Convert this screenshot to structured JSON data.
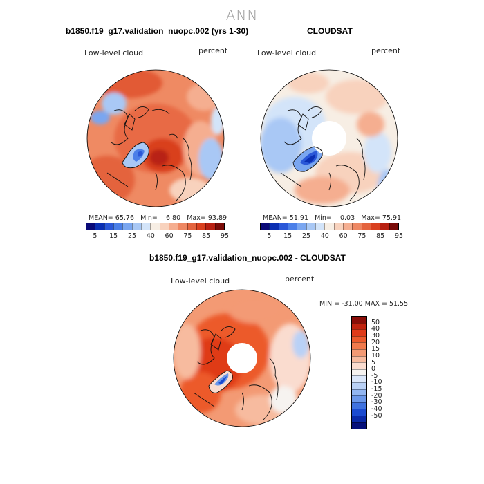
{
  "page": {
    "title": "ANN"
  },
  "panel_model": {
    "title": "b1850.f19_g17.validation_nuopc.002 (yrs 1-30)",
    "variable": "Low-level cloud",
    "units": "percent",
    "stats": {
      "mean_label": "MEAN=",
      "mean": "65.76",
      "min_label": "Min=",
      "min": "6.80",
      "max_label": "Max=",
      "max": "93.89"
    }
  },
  "panel_obs": {
    "title": "CLOUDSAT",
    "variable": "Low-level cloud",
    "units": "percent",
    "stats": {
      "mean_label": "MEAN=",
      "mean": "51.91",
      "min_label": "Min=",
      "min": "0.03",
      "max_label": "Max=",
      "max": "75.91"
    }
  },
  "panel_diff": {
    "title": "b1850.f19_g17.validation_nuopc.002 - CLOUDSAT",
    "variable": "Low-level cloud",
    "units": "percent",
    "stats_text": "MIN = -31.00 MAX =  51.55"
  },
  "colorbar_abs": {
    "labels": [
      "5",
      "15",
      "25",
      "40",
      "60",
      "75",
      "85",
      "95"
    ],
    "colors": [
      "#0a0a78",
      "#0b2fb3",
      "#2a57d8",
      "#4b7fe8",
      "#7aa6f0",
      "#a9c8f5",
      "#d3e4f9",
      "#f7eee4",
      "#f8d2bd",
      "#f5ae90",
      "#ee8762",
      "#e4643e",
      "#d9401f",
      "#b82012",
      "#7a0b08"
    ]
  },
  "colorbar_diff": {
    "labels": [
      "50",
      "40",
      "30",
      "20",
      "15",
      "10",
      "5",
      "0",
      "-5",
      "-10",
      "-15",
      "-20",
      "-30",
      "-40",
      "-50"
    ],
    "colors": [
      "#8a0d08",
      "#c0230f",
      "#df3b19",
      "#ec5a2c",
      "#f07a4c",
      "#f39a74",
      "#f7bb9f",
      "#fadccf",
      "#f6f3f0",
      "#dbe7fa",
      "#b9d1f6",
      "#92b6f1",
      "#6b98ea",
      "#3f72df",
      "#1b4bd0",
      "#0a2aa8",
      "#06107a"
    ]
  }
}
